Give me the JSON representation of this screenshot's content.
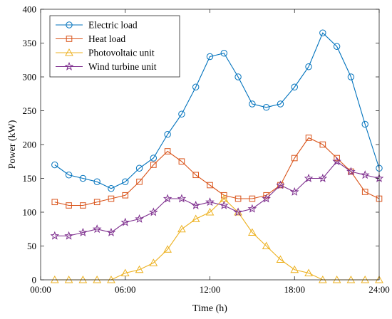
{
  "chart_data": {
    "type": "line",
    "title": "",
    "xlabel": "Time (h)",
    "ylabel": "Power (kW)",
    "xlim": [
      0,
      24
    ],
    "ylim": [
      0,
      400
    ],
    "x_ticks": [
      {
        "value": 0,
        "label": "00:00"
      },
      {
        "value": 6,
        "label": "06:00"
      },
      {
        "value": 12,
        "label": "12:00"
      },
      {
        "value": 18,
        "label": "18:00"
      },
      {
        "value": 24,
        "label": "24:00"
      }
    ],
    "y_ticks": [
      0,
      50,
      100,
      150,
      200,
      250,
      300,
      350,
      400
    ],
    "grid": false,
    "legend": "top-left",
    "x": [
      1,
      2,
      3,
      4,
      5,
      6,
      7,
      8,
      9,
      10,
      11,
      12,
      13,
      14,
      15,
      16,
      17,
      18,
      19,
      20,
      21,
      22,
      23,
      24
    ],
    "series": [
      {
        "name": "Electric load",
        "color": "#0072BD",
        "marker": "circle",
        "values": [
          170,
          155,
          150,
          145,
          135,
          145,
          165,
          180,
          215,
          245,
          285,
          330,
          335,
          300,
          260,
          255,
          260,
          285,
          315,
          365,
          345,
          300,
          230,
          165
        ]
      },
      {
        "name": "Heat load",
        "color": "#D95319",
        "marker": "square",
        "values": [
          115,
          110,
          110,
          115,
          120,
          125,
          145,
          170,
          190,
          175,
          155,
          140,
          125,
          120,
          120,
          125,
          140,
          180,
          210,
          200,
          180,
          160,
          130,
          120
        ]
      },
      {
        "name": "Photovoltaic unit",
        "color": "#EDB120",
        "marker": "triangle",
        "values": [
          0,
          0,
          0,
          0,
          0,
          10,
          15,
          25,
          45,
          75,
          90,
          100,
          120,
          100,
          70,
          50,
          30,
          15,
          10,
          0,
          0,
          0,
          0,
          0
        ]
      },
      {
        "name": "Wind turbine unit",
        "color": "#7E2F8E",
        "marker": "star",
        "values": [
          65,
          65,
          70,
          75,
          70,
          85,
          90,
          100,
          120,
          120,
          110,
          115,
          110,
          100,
          105,
          120,
          140,
          130,
          150,
          150,
          175,
          160,
          155,
          150
        ]
      }
    ]
  }
}
